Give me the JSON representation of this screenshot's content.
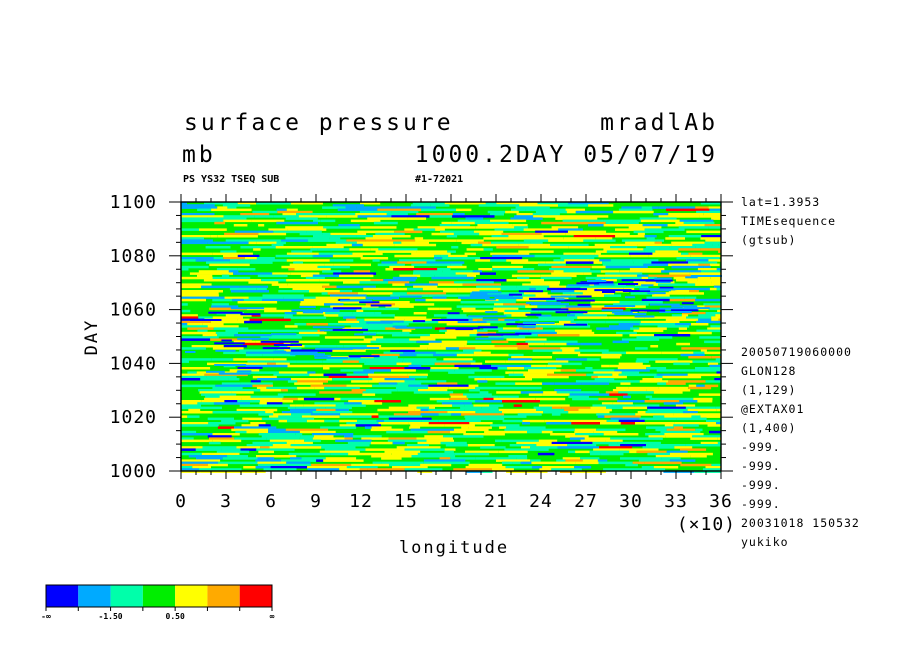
{
  "chart_data": {
    "type": "heatmap",
    "title": "surface pressure",
    "title_right": "mradlAb",
    "units": "mb",
    "subtitle": "1000.2DAY 05/07/19",
    "info_left": "PS YS32 TSEQ SUB",
    "info_right": "#1-72021",
    "xlabel": "longitude",
    "ylabel": "DAY",
    "x_multiplier_label": "(×10)",
    "xlim": [
      0,
      36
    ],
    "ylim": [
      1000,
      1100
    ],
    "xticks": [
      "0",
      "3",
      "6",
      "9",
      "12",
      "15",
      "18",
      "21",
      "24",
      "27",
      "30",
      "33",
      "36"
    ],
    "yticks": [
      "1000",
      "1020",
      "1040",
      "1060",
      "1080",
      "1100"
    ],
    "side_info_top": [
      "lat=1.3953",
      "TIMEsequence",
      "(gtsub)"
    ],
    "side_info_bottom": [
      "20050719060000",
      "GLON128",
      "(1,129)",
      "@EXTAX01",
      "(1,400)",
      "-999.",
      "-999.",
      "-999.",
      "-999.",
      "20031018 150532",
      "yukiko"
    ],
    "colorbar": {
      "colors": [
        "#0000ff",
        "#00aaff",
        "#00ffaa",
        "#00ee00",
        "#ffff00",
        "#ffaa00",
        "#ff0000"
      ],
      "labels": [
        "-∞",
        "-1.50",
        "0.50",
        "∞"
      ]
    },
    "grid": false
  }
}
